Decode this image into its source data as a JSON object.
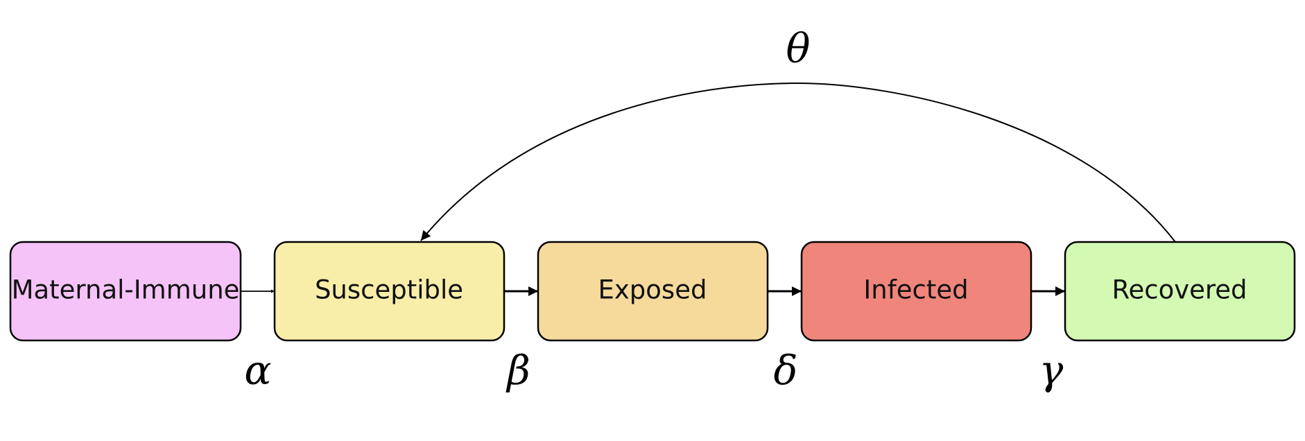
{
  "compartments": [
    {
      "id": "maternal-immune",
      "label": "Maternal-Immune",
      "color": "#f5c3f8"
    },
    {
      "id": "susceptible",
      "label": "Susceptible",
      "color": "#f9eea9"
    },
    {
      "id": "exposed",
      "label": "Exposed",
      "color": "#f5da9c"
    },
    {
      "id": "infected",
      "label": "Infected",
      "color": "#f0857c"
    },
    {
      "id": "recovered",
      "label": "Recovered",
      "color": "#d3f9b2"
    }
  ],
  "transitions": [
    {
      "from": "maternal-immune",
      "to": "susceptible",
      "rate": "α"
    },
    {
      "from": "susceptible",
      "to": "exposed",
      "rate": "β"
    },
    {
      "from": "exposed",
      "to": "infected",
      "rate": "δ"
    },
    {
      "from": "infected",
      "to": "recovered",
      "rate": "γ"
    },
    {
      "from": "recovered",
      "to": "susceptible",
      "rate": "θ"
    }
  ]
}
